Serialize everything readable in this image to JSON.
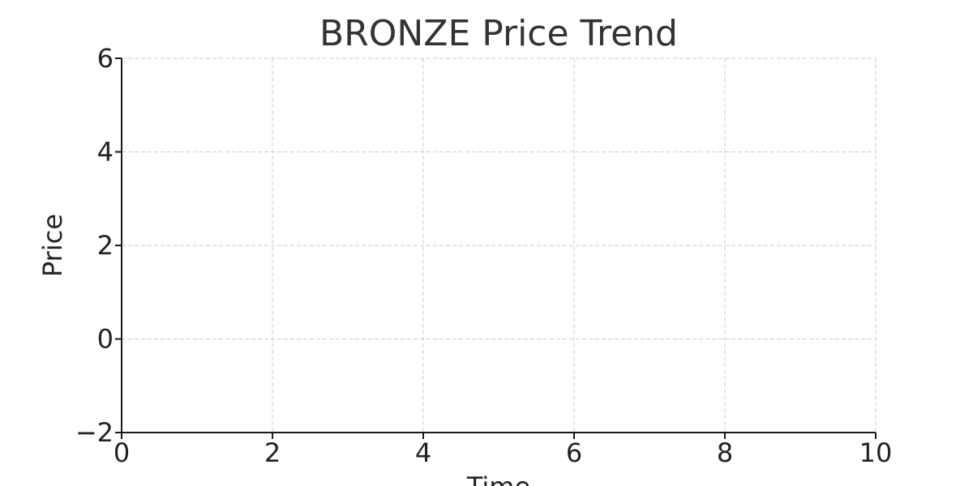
{
  "chart_data": {
    "type": "line",
    "title": "BRONZE Price Trend",
    "xlabel": "Time",
    "ylabel": "Price",
    "xlim": [
      0,
      10
    ],
    "ylim": [
      -2,
      6
    ],
    "x_ticks": [
      0,
      2,
      4,
      6,
      8,
      10
    ],
    "y_ticks": [
      -2,
      0,
      2,
      4,
      6
    ],
    "x_tick_labels": [
      "0",
      "2",
      "4",
      "6",
      "8",
      "10"
    ],
    "y_tick_labels": [
      "−2",
      "0",
      "2",
      "4",
      "6"
    ],
    "grid": true,
    "legend": "none",
    "series": []
  }
}
